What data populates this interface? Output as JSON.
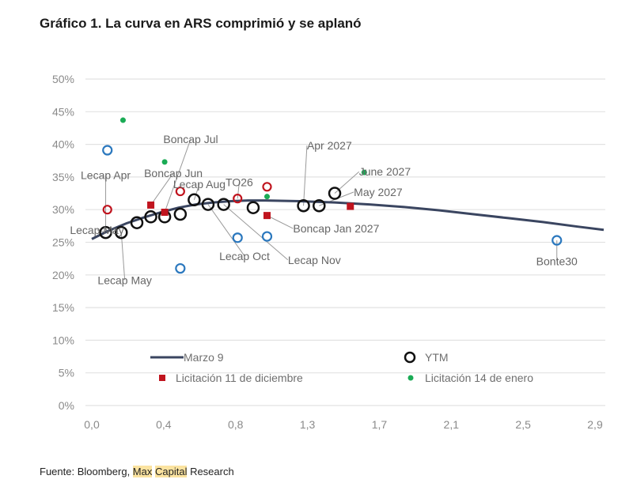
{
  "title": "Gráfico 1. La curva en ARS comprimió y se aplanó",
  "source": {
    "prefix": "Fuente: Bloomberg, ",
    "highlight1": "Max",
    "space": " ",
    "highlight2": "Capital",
    "suffix": " Research"
  },
  "colors": {
    "curve": "#3a4560",
    "ytm": "#111111",
    "red": "#c0141e",
    "green": "#1aab55",
    "blue": "#2b78be",
    "grid": "#e2e2e2",
    "leader": "#9a9a9a"
  },
  "chart_data": {
    "type": "scatter",
    "title": "Gráfico 1. La curva en ARS comprimió y se aplanó",
    "xlabel": "",
    "ylabel": "",
    "xlim": [
      0.0,
      2.9
    ],
    "ylim": [
      0,
      50
    ],
    "grid": true,
    "x_ticks": [
      "0,0",
      "0,4",
      "0,8",
      "1,3",
      "1,7",
      "2,1",
      "2,5",
      "2,9"
    ],
    "y_ticks": [
      "0%",
      "5%",
      "10%",
      "15%",
      "20%",
      "25%",
      "30%",
      "35%",
      "40%",
      "45%",
      "50%"
    ],
    "legend": {
      "placement": "bottom-inside",
      "entries": [
        "Marzo 9",
        "YTM",
        "Licitación 11 de diciembre",
        "Licitación 14 de enero"
      ]
    },
    "series": [
      {
        "name": "Marzo 9",
        "kind": "line",
        "x": [
          0.0,
          0.1,
          0.2,
          0.3,
          0.4,
          0.5,
          0.6,
          0.7,
          0.8,
          0.9,
          1.0,
          1.2,
          1.4,
          1.6,
          1.8,
          2.0,
          2.2,
          2.4,
          2.6,
          2.8,
          2.95
        ],
        "y": [
          25.5,
          26.8,
          27.9,
          28.8,
          29.6,
          30.3,
          30.8,
          31.1,
          31.3,
          31.4,
          31.4,
          31.3,
          31.1,
          30.8,
          30.4,
          29.9,
          29.3,
          28.7,
          28.1,
          27.4,
          26.9
        ]
      },
      {
        "name": "YTM",
        "kind": "hollow-circle",
        "points": [
          {
            "x": 0.08,
            "y": 26.5
          },
          {
            "x": 0.17,
            "y": 26.5
          },
          {
            "x": 0.26,
            "y": 28.0
          },
          {
            "x": 0.34,
            "y": 28.9
          },
          {
            "x": 0.42,
            "y": 28.9
          },
          {
            "x": 0.51,
            "y": 29.3
          },
          {
            "x": 0.59,
            "y": 31.5
          },
          {
            "x": 0.67,
            "y": 30.8
          },
          {
            "x": 0.76,
            "y": 30.8
          },
          {
            "x": 0.93,
            "y": 30.3
          },
          {
            "x": 1.22,
            "y": 30.6
          },
          {
            "x": 1.31,
            "y": 30.6
          },
          {
            "x": 1.4,
            "y": 32.5
          }
        ]
      },
      {
        "name": "Licitación 11 de diciembre",
        "kind": "square",
        "points": [
          {
            "x": 0.34,
            "y": 30.7
          },
          {
            "x": 0.42,
            "y": 29.6
          },
          {
            "x": 1.01,
            "y": 29.1
          },
          {
            "x": 1.49,
            "y": 30.5
          }
        ]
      },
      {
        "name": "Licitación 14 de enero",
        "kind": "dot",
        "points": [
          {
            "x": 0.18,
            "y": 43.7
          },
          {
            "x": 0.42,
            "y": 37.3
          },
          {
            "x": 1.01,
            "y": 32.0
          },
          {
            "x": 1.57,
            "y": 35.7
          }
        ]
      },
      {
        "name": "Red hollow (unlabeled)",
        "kind": "hollow-circle-red",
        "points": [
          {
            "x": 0.09,
            "y": 30.0
          },
          {
            "x": 0.51,
            "y": 32.8
          },
          {
            "x": 0.84,
            "y": 31.7
          },
          {
            "x": 1.01,
            "y": 33.5
          }
        ]
      },
      {
        "name": "Blue hollow (unlabeled)",
        "kind": "hollow-circle-blue",
        "points": [
          {
            "x": 0.09,
            "y": 39.1
          },
          {
            "x": 0.51,
            "y": 21.0
          },
          {
            "x": 0.84,
            "y": 25.7
          },
          {
            "x": 1.01,
            "y": 25.9
          },
          {
            "x": 2.68,
            "y": 25.3
          }
        ]
      }
    ],
    "annotations": [
      {
        "text": "Lecap Apr",
        "target": {
          "x": 0.08,
          "y": 26.5
        },
        "at": {
          "x": 0.08,
          "y": 34.7
        },
        "anchor": "middle"
      },
      {
        "text": "Lecap May",
        "target": {
          "x": 0.08,
          "y": 26.5
        },
        "at": {
          "x": 0.03,
          "y": 26.3
        },
        "anchor": "middle"
      },
      {
        "text": "Lecap May",
        "target": {
          "x": 0.17,
          "y": 26.5
        },
        "at": {
          "x": 0.19,
          "y": 18.6
        },
        "anchor": "middle"
      },
      {
        "text": "Boncap Jun",
        "target": {
          "x": 0.34,
          "y": 30.7
        },
        "at": {
          "x": 0.47,
          "y": 35.0
        },
        "anchor": "middle"
      },
      {
        "text": "Boncap Jul",
        "target": {
          "x": 0.42,
          "y": 29.6
        },
        "at": {
          "x": 0.57,
          "y": 40.2
        },
        "anchor": "middle"
      },
      {
        "text": "Lecap Aug",
        "target": {
          "x": 0.59,
          "y": 31.5
        },
        "at": {
          "x": 0.62,
          "y": 33.3
        },
        "anchor": "middle"
      },
      {
        "text": "TO26",
        "target": {
          "x": 0.84,
          "y": 31.7
        },
        "at": {
          "x": 0.85,
          "y": 33.6
        },
        "anchor": "middle"
      },
      {
        "text": "Lecap Oct",
        "target": {
          "x": 0.67,
          "y": 30.8
        },
        "at": {
          "x": 0.88,
          "y": 22.3
        },
        "anchor": "middle"
      },
      {
        "text": "Lecap Nov",
        "target": {
          "x": 0.76,
          "y": 30.8
        },
        "at": {
          "x": 1.13,
          "y": 21.7
        },
        "anchor": "start"
      },
      {
        "text": "Boncap Jan 2027",
        "target": {
          "x": 1.01,
          "y": 29.1
        },
        "at": {
          "x": 1.16,
          "y": 26.5
        },
        "anchor": "start"
      },
      {
        "text": "Apr 2027",
        "target": {
          "x": 1.22,
          "y": 30.6
        },
        "at": {
          "x": 1.24,
          "y": 39.2
        },
        "anchor": "start"
      },
      {
        "text": "June 2027",
        "target": {
          "x": 1.4,
          "y": 32.5
        },
        "at": {
          "x": 1.54,
          "y": 35.2
        },
        "anchor": "start"
      },
      {
        "text": "May 2027",
        "target": {
          "x": 1.31,
          "y": 30.6
        },
        "at": {
          "x": 1.51,
          "y": 32.1
        },
        "anchor": "start"
      },
      {
        "text": "Bonte30",
        "target": {
          "x": 2.68,
          "y": 25.3
        },
        "at": {
          "x": 2.68,
          "y": 21.5
        },
        "anchor": "middle"
      }
    ]
  }
}
